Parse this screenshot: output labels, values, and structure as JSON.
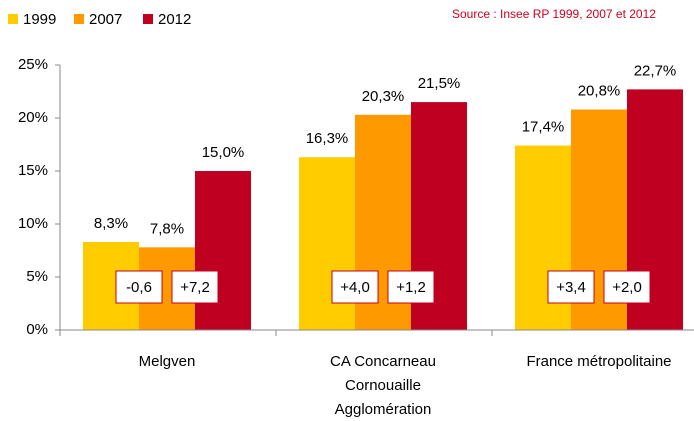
{
  "chart_data": {
    "type": "bar",
    "source": "Source : Insee RP 1999, 2007 et 2012",
    "categories": [
      "Melgven",
      "CA Concarneau\nCornouaille\nAgglomération",
      "France métropolitaine"
    ],
    "series": [
      {
        "name": "1999",
        "color": "#ffcc00",
        "values": [
          8.3,
          16.3,
          17.4
        ],
        "value_labels": [
          "8,3%",
          "16,3%",
          "17,4%"
        ]
      },
      {
        "name": "2007",
        "color": "#ff9900",
        "values": [
          7.8,
          20.3,
          20.8
        ],
        "value_labels": [
          "7,8%",
          "20,3%",
          "20,8%"
        ]
      },
      {
        "name": "2012",
        "color": "#c00020",
        "values": [
          15.0,
          21.5,
          22.7
        ],
        "value_labels": [
          "15,0%",
          "21,5%",
          "22,7%"
        ]
      }
    ],
    "annotations": [
      [
        "-0,6",
        "+7,2"
      ],
      [
        "+4,0",
        "+1,2"
      ],
      [
        "+3,4",
        "+2,0"
      ]
    ],
    "ylim": [
      0,
      25
    ],
    "yticks": [
      {
        "value": 0,
        "label": "0%"
      },
      {
        "value": 5,
        "label": "5%"
      },
      {
        "value": 10,
        "label": "10%"
      },
      {
        "value": 15,
        "label": "15%"
      },
      {
        "value": 20,
        "label": "20%"
      },
      {
        "value": 25,
        "label": "25%"
      }
    ],
    "grid": false
  }
}
